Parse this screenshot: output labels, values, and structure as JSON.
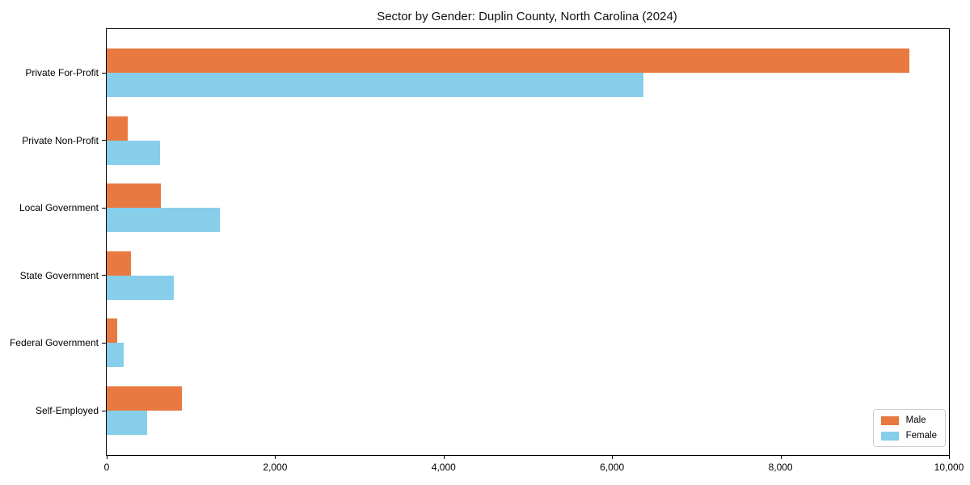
{
  "title": "Sector by Gender: Duplin County, North Carolina (2024)",
  "chart_data": {
    "type": "bar",
    "orientation": "horizontal",
    "title": "Sector by Gender: Duplin County, North Carolina (2024)",
    "categories": [
      "Private For-Profit",
      "Private Non-Profit",
      "Local Government",
      "State Government",
      "Federal Government",
      "Self-Employed"
    ],
    "series": [
      {
        "name": "Male",
        "color": "#E87940",
        "values": [
          9530,
          250,
          640,
          290,
          125,
          890
        ]
      },
      {
        "name": "Female",
        "color": "#87CEEB",
        "values": [
          6370,
          630,
          1340,
          800,
          200,
          480
        ]
      }
    ],
    "xlabel": "",
    "ylabel": "",
    "xlim": [
      0,
      10000
    ],
    "x_ticks": [
      0,
      2000,
      4000,
      6000,
      8000,
      10000
    ],
    "x_tick_labels": [
      "0",
      "2,000",
      "4,000",
      "6,000",
      "8,000",
      "10,000"
    ],
    "grid": false,
    "legend_position": "lower right"
  }
}
